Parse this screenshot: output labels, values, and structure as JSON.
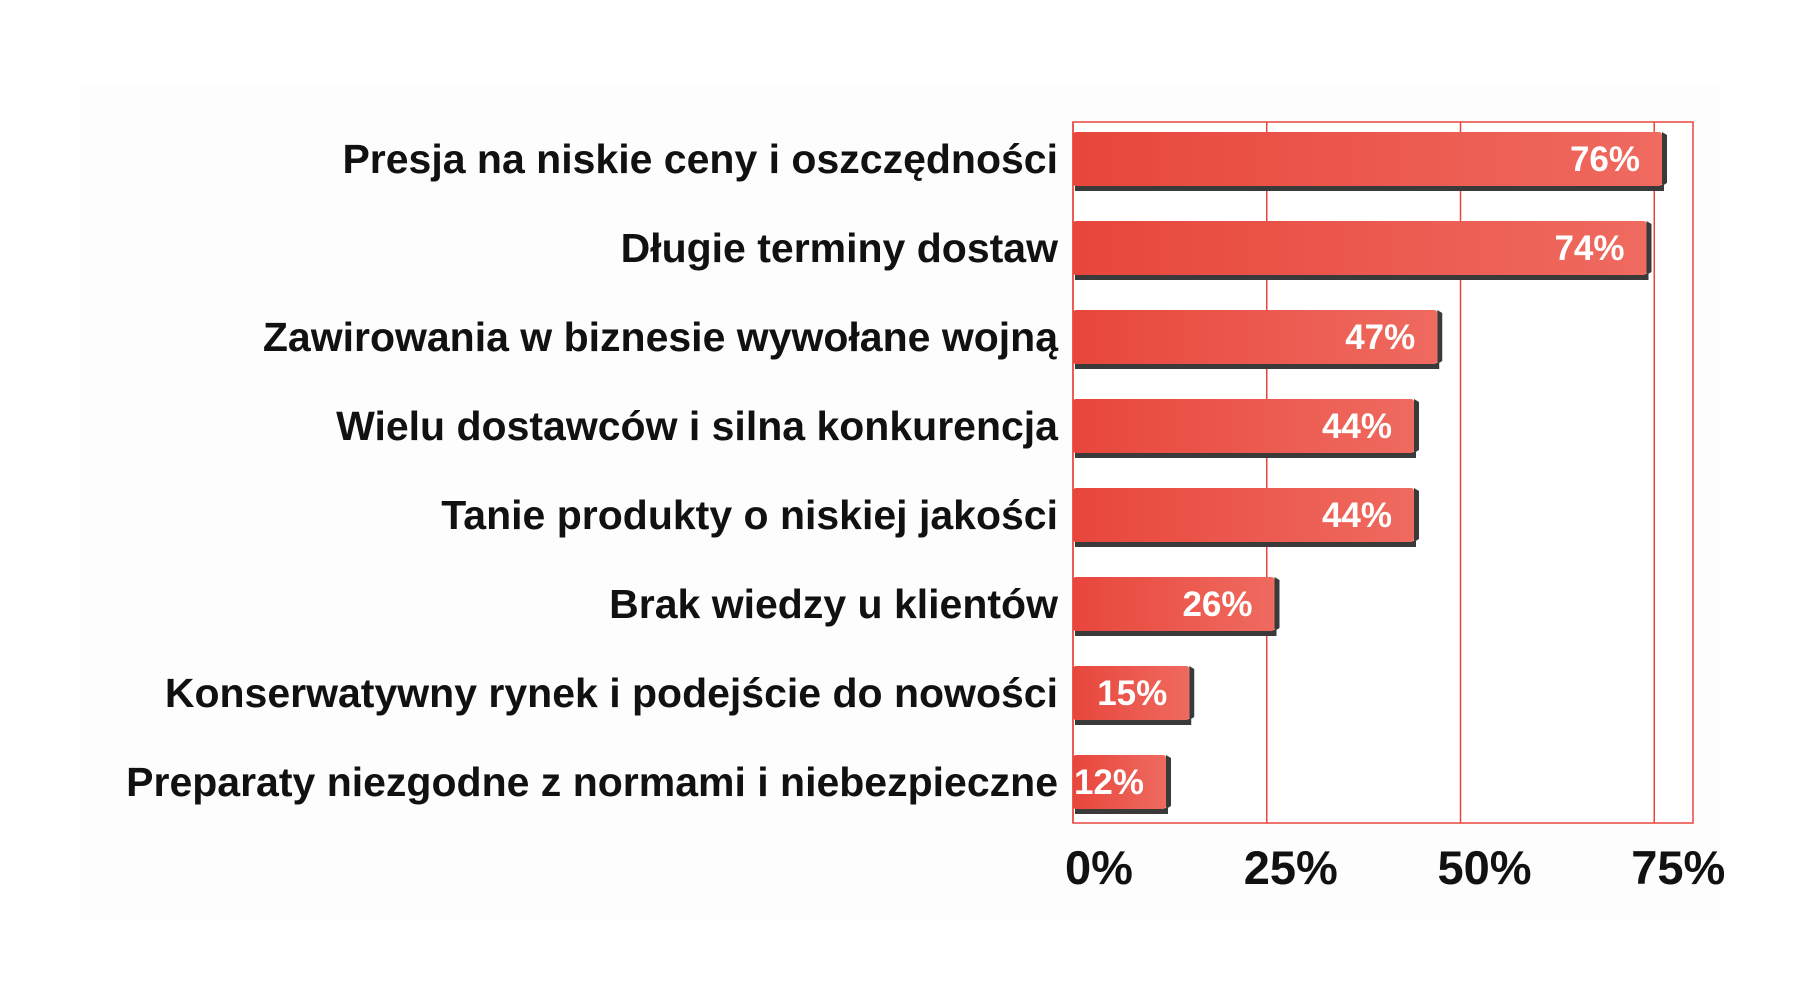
{
  "chart_data": {
    "type": "bar",
    "orientation": "horizontal",
    "categories": [
      "Presja na niskie ceny i oszczędności",
      "Długie terminy dostaw",
      "Zawirowania w biznesie wywołane wojną",
      "Wielu dostawców i silna konkurencja",
      "Tanie produkty o niskiej jakości",
      "Brak wiedzy u klientów",
      "Konserwatywny rynek i podejście do nowości",
      "Preparaty niezgodne z normami i niebezpieczne"
    ],
    "values": [
      76,
      74,
      47,
      44,
      44,
      26,
      15,
      12
    ],
    "value_labels": [
      "76%",
      "74%",
      "47%",
      "44%",
      "44%",
      "26%",
      "15%",
      "12%"
    ],
    "x_ticks": [
      0,
      25,
      50,
      75
    ],
    "x_tick_labels": [
      "0%",
      "25%",
      "50%",
      "75%"
    ],
    "xlim": [
      0,
      80
    ],
    "grid": true,
    "bar_color": "#e8463c",
    "bar_color_light": "#ef6a5f",
    "bar_shadow_color": "#3a3a3a",
    "gridline_color": "#e8463c",
    "title": "",
    "xlabel": "",
    "ylabel": ""
  }
}
